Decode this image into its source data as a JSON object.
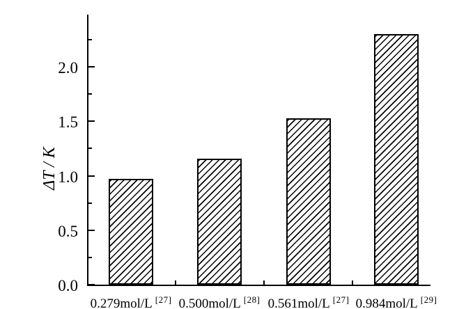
{
  "chart_data": {
    "type": "bar",
    "title": "",
    "xlabel": "",
    "ylabel": "ΔT / K",
    "categories": [
      {
        "label": "0.279mol/L",
        "ref": "[27]"
      },
      {
        "label": "0.500mol/L",
        "ref": "[28]"
      },
      {
        "label": "0.561mol/L",
        "ref": "[27]"
      },
      {
        "label": "0.984mol/L",
        "ref": "[29]"
      }
    ],
    "values": [
      0.97,
      1.16,
      1.53,
      2.3
    ],
    "ylim": [
      0,
      2.48
    ],
    "y_major_ticks": [
      {
        "value": 0.0,
        "label": "0.0"
      },
      {
        "value": 0.5,
        "label": "0.5"
      },
      {
        "value": 1.0,
        "label": "1.0"
      },
      {
        "value": 1.5,
        "label": "1.5"
      },
      {
        "value": 2.0,
        "label": "2.0"
      }
    ],
    "y_minor_ticks": [
      0.25,
      0.75,
      1.25,
      1.75,
      2.25
    ],
    "grid": "off",
    "legend": "none",
    "bar_fill": "diagonal-hatch",
    "bar_color": "#000000",
    "background_color": "#ffffff"
  }
}
